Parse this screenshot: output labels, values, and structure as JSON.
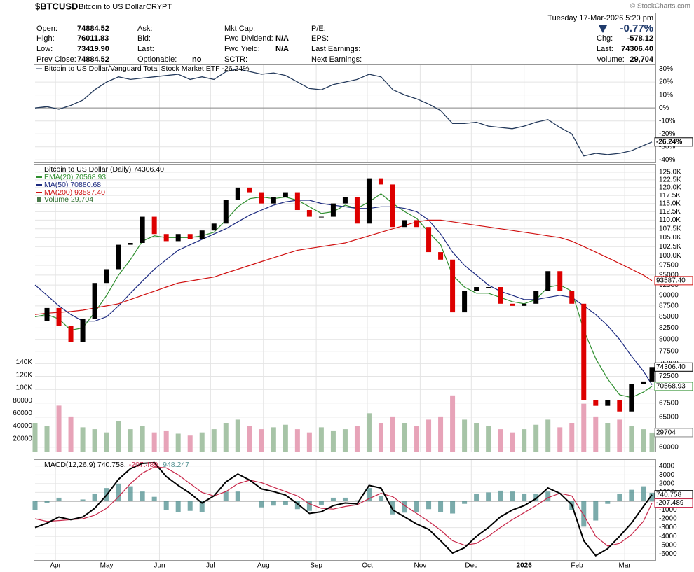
{
  "header": {
    "symbol": "$BTCUSD",
    "name": "Bitcoin to US Dollar",
    "exchange": "CRYPT",
    "brand": "© StockCharts.com",
    "datetime": "Tuesday 17-Mar-2026 5:20 pm",
    "change_pct": "-0.77%",
    "columns": [
      [
        {
          "label": "Open:",
          "value": "74884.52"
        },
        {
          "label": "High:",
          "value": "76011.83"
        },
        {
          "label": "Low:",
          "value": "73419.90"
        },
        {
          "label": "Prev Close:",
          "value": "74884.52"
        }
      ],
      [
        {
          "label": "Ask:"
        },
        {
          "label": "Bid:"
        },
        {
          "label": "Last:"
        },
        {
          "label": "Optionable:",
          "value": "no"
        }
      ],
      [
        {
          "label": "Mkt Cap:"
        },
        {
          "label": "Fwd Dividend:",
          "value": "N/A"
        },
        {
          "label": "Fwd Yield:",
          "value": "N/A"
        },
        {
          "label": "SCTR:"
        }
      ],
      [
        {
          "label": "P/E:"
        },
        {
          "label": "EPS:"
        },
        {
          "label": "Last Earnings:"
        },
        {
          "label": "Next Earnings:"
        }
      ]
    ],
    "right": [
      {
        "label": "Chg:",
        "value": "-578.12"
      },
      {
        "label": "Last:",
        "value": "74306.40"
      },
      {
        "label": "Volume:",
        "value": "29,704"
      }
    ]
  },
  "x_axis": {
    "xlim": [
      0,
      362
    ],
    "xticks": [
      {
        "value": 12,
        "label": "Apr"
      },
      {
        "value": 42,
        "label": "May"
      },
      {
        "value": 73,
        "label": "Jun"
      },
      {
        "value": 103,
        "label": "Jul"
      },
      {
        "value": 134,
        "label": "Aug"
      },
      {
        "value": 165,
        "label": "Sep"
      },
      {
        "value": 195,
        "label": "Oct"
      },
      {
        "value": 226,
        "label": "Nov"
      },
      {
        "value": 256,
        "label": "Dec"
      },
      {
        "value": 287,
        "label": "2026"
      },
      {
        "value": 318,
        "label": "Feb"
      },
      {
        "value": 346,
        "label": "Mar"
      }
    ],
    "x": [
      0,
      7,
      14,
      21,
      28,
      35,
      42,
      49,
      56,
      63,
      70,
      77,
      84,
      91,
      98,
      105,
      112,
      119,
      126,
      133,
      140,
      147,
      154,
      161,
      168,
      175,
      182,
      189,
      196,
      203,
      210,
      217,
      224,
      231,
      238,
      245,
      252,
      259,
      266,
      273,
      280,
      287,
      294,
      301,
      308,
      315,
      322,
      329,
      336,
      343,
      350,
      357,
      362
    ]
  },
  "chart_data": [
    {
      "type": "line",
      "legend": "Bitcoin to US Dollar/Vanguard Total Stock Market ETF -26.24%",
      "color": "#23395b",
      "grid": true,
      "ylim": [
        -42,
        33
      ],
      "yticks": [
        {
          "value": 30,
          "label": "30%"
        },
        {
          "value": 20,
          "label": "20%"
        },
        {
          "value": 10,
          "label": "10%"
        },
        {
          "value": 0,
          "label": "0%"
        },
        {
          "value": -10,
          "label": "-10%"
        },
        {
          "value": -20,
          "label": "-20%"
        },
        {
          "value": -30,
          "label": "-30%"
        },
        {
          "value": -40,
          "label": "-40%"
        }
      ],
      "values": [
        0,
        1,
        -1,
        2,
        6,
        14,
        20,
        24,
        22,
        23,
        24,
        25,
        26,
        22,
        24,
        22,
        28,
        30,
        28,
        26,
        27,
        25,
        20,
        15,
        14,
        18,
        20,
        22,
        26,
        24,
        14,
        10,
        7,
        3,
        -2,
        -12,
        -12,
        -11,
        -14,
        -15,
        -16,
        -14,
        -11,
        -9,
        -15,
        -20,
        -37,
        -35,
        -36,
        -35,
        -33,
        -29,
        -26.24
      ],
      "tags": [
        {
          "value": -26.24,
          "label": "-26.24%",
          "color": "#000000"
        }
      ]
    },
    {
      "type": "candlestick",
      "title": "Bitcoin to US Dollar (Daily) 74306.40",
      "log": true,
      "grid": true,
      "up_color": "#000000",
      "down_color": "#dd0000",
      "ylim": [
        59300,
        127600
      ],
      "yticks": [
        {
          "value": 125000,
          "label": "125.0K"
        },
        {
          "value": 122500,
          "label": "122.5K"
        },
        {
          "value": 120000,
          "label": "120.0K"
        },
        {
          "value": 117500,
          "label": "117.5K"
        },
        {
          "value": 115000,
          "label": "115.0K"
        },
        {
          "value": 112500,
          "label": "112.5K"
        },
        {
          "value": 110000,
          "label": "110.0K"
        },
        {
          "value": 107500,
          "label": "107.5K"
        },
        {
          "value": 105000,
          "label": "105.0K"
        },
        {
          "value": 102500,
          "label": "102.5K"
        },
        {
          "value": 100000,
          "label": "100.0K"
        },
        97500,
        95000,
        92500,
        90000,
        87500,
        85000,
        82500,
        80000,
        77500,
        75000,
        72500,
        70000,
        67500,
        65000,
        60000
      ],
      "close": [
        84000,
        87000,
        83000,
        79500,
        84500,
        93000,
        96500,
        103000,
        103500,
        111000,
        106000,
        104000,
        106000,
        104500,
        107000,
        109000,
        116000,
        120000,
        118500,
        115000,
        117000,
        118500,
        113000,
        111000,
        111000,
        115000,
        117000,
        109000,
        123000,
        121000,
        108000,
        110000,
        108000,
        101000,
        99000,
        86000,
        91000,
        92000,
        92000,
        88000,
        87500,
        88000,
        91000,
        96000,
        91000,
        88000,
        68000,
        67000,
        68000,
        66000,
        71000,
        71500,
        74306.4
      ],
      "series": [
        {
          "name": "EMA(20) 70568.93",
          "color": "#2f8f2f",
          "values": [
            85000,
            85500,
            84500,
            82000,
            82500,
            86000,
            90000,
            95000,
            99000,
            104000,
            105500,
            105000,
            105000,
            105000,
            105500,
            106500,
            110000,
            114000,
            116500,
            117000,
            116500,
            117000,
            116000,
            114000,
            112000,
            112500,
            114500,
            113500,
            115500,
            118000,
            115000,
            112500,
            110500,
            106500,
            103000,
            95000,
            92000,
            90500,
            90500,
            89500,
            88500,
            88000,
            89000,
            92000,
            92500,
            91000,
            82000,
            76000,
            72000,
            69000,
            68500,
            69500,
            70568.93
          ]
        },
        {
          "name": "MA(50) 70880.68",
          "color": "#1c2a80",
          "values": [
            92500,
            90000,
            87500,
            85500,
            84000,
            84000,
            85000,
            87500,
            90500,
            93500,
            96500,
            99000,
            101500,
            103000,
            104500,
            106000,
            107500,
            109500,
            111500,
            113000,
            114500,
            115500,
            116000,
            116000,
            115000,
            114500,
            114000,
            113500,
            113500,
            114000,
            114000,
            113500,
            112500,
            110000,
            106000,
            101000,
            97500,
            95000,
            92500,
            91000,
            90000,
            89000,
            89000,
            89500,
            90000,
            89500,
            87500,
            85500,
            83000,
            80000,
            76500,
            73500,
            70880.68
          ]
        },
        {
          "name": "MA(200) 93587.40",
          "color": "#d01010",
          "values": [
            85500,
            85800,
            86000,
            86200,
            86500,
            87000,
            87500,
            88000,
            89000,
            90000,
            91000,
            92000,
            93000,
            93500,
            94000,
            94500,
            95500,
            96500,
            97500,
            98500,
            99500,
            100500,
            101500,
            102000,
            102500,
            103000,
            103500,
            104500,
            105500,
            106500,
            107500,
            108500,
            109500,
            110000,
            110000,
            109500,
            109000,
            108500,
            108000,
            107500,
            107000,
            106500,
            106000,
            105500,
            105000,
            104000,
            102500,
            101000,
            99500,
            98000,
            96500,
            95000,
            93587.4
          ]
        }
      ],
      "tags": [
        {
          "value": 93587.4,
          "label": "93587.40",
          "color": "#d01010"
        },
        {
          "value": 74306.4,
          "label": "74306.40",
          "color": "#000000"
        },
        {
          "value": 70568.93,
          "label": "70568.93",
          "color": "#2f8f2f"
        }
      ],
      "volume": {
        "name": "Volume 29,704",
        "up_color": "#a7c4a7",
        "down_color": "#e7a3b8",
        "ylim": [
          0,
          450000
        ],
        "yticks": [
          20000,
          40000,
          60000,
          80000,
          {
            "value": 100000,
            "label": "100K"
          },
          {
            "value": 120000,
            "label": "120K"
          },
          {
            "value": 140000,
            "label": "140K"
          }
        ],
        "values": [
          45000,
          40000,
          72000,
          55000,
          38000,
          35000,
          30000,
          48000,
          35000,
          40000,
          30000,
          33000,
          28000,
          25000,
          30000,
          35000,
          45000,
          50000,
          40000,
          35000,
          38000,
          42000,
          35000,
          30000,
          38000,
          33000,
          35000,
          40000,
          60000,
          45000,
          55000,
          45000,
          40000,
          50000,
          55000,
          88000,
          50000,
          45000,
          40000,
          35000,
          30000,
          35000,
          42000,
          50000,
          38000,
          45000,
          75000,
          55000,
          45000,
          50000,
          40000,
          35000,
          29704
        ],
        "tags": [
          {
            "value": 29704,
            "label": "29704",
            "color": "#888888"
          }
        ]
      }
    },
    {
      "type": "macd",
      "grid": true,
      "title_parts": [
        {
          "text": "MACD(12,26,9) 740.758,",
          "color": "#000000"
        },
        {
          "text": "-207.489,",
          "color": "#c8284a"
        },
        {
          "text": "948.247",
          "color": "#4f8f8f"
        }
      ],
      "ylim": [
        -6700,
        4700
      ],
      "yticks": [
        4000,
        3000,
        2000,
        1000,
        -1000,
        -2000,
        -3000,
        -4000,
        -5000,
        -6000
      ],
      "series": [
        {
          "name": "MACD",
          "color": "#000000",
          "values": [
            -3000,
            -2500,
            -1800,
            -2100,
            -1800,
            -800,
            700,
            2500,
            3700,
            4300,
            4400,
            2800,
            1800,
            900,
            -200,
            600,
            2200,
            3100,
            2400,
            1400,
            1100,
            700,
            -300,
            -1400,
            -1200,
            -500,
            -200,
            -300,
            1800,
            1500,
            -1000,
            -1800,
            -2600,
            -3200,
            -4500,
            -5900,
            -5300,
            -4000,
            -3000,
            -1800,
            -1000,
            -500,
            300,
            1500,
            900,
            -400,
            -4500,
            -6200,
            -5400,
            -4000,
            -2500,
            -600,
            740.758
          ]
        },
        {
          "name": "Signal",
          "color": "#c8284a",
          "values": [
            -2000,
            -2300,
            -2200,
            -2100,
            -2000,
            -1600,
            -800,
            500,
            2000,
            3200,
            3900,
            3800,
            3000,
            2000,
            1000,
            600,
            1100,
            2000,
            2400,
            2100,
            1600,
            1100,
            600,
            -300,
            -800,
            -900,
            -600,
            -400,
            300,
            900,
            500,
            -500,
            -1400,
            -2300,
            -3300,
            -4500,
            -5000,
            -4800,
            -4000,
            -3000,
            -2100,
            -1300,
            -500,
            400,
            900,
            600,
            -1600,
            -4000,
            -5100,
            -4800,
            -3800,
            -2300,
            -207.489
          ]
        },
        {
          "name": "Histogram",
          "color": "#4f8f8f",
          "values": [
            -1000,
            -200,
            400,
            0,
            200,
            800,
            1500,
            2000,
            1700,
            1100,
            500,
            -1000,
            -1200,
            -1100,
            -1200,
            0,
            1100,
            1100,
            0,
            -700,
            -500,
            -400,
            -900,
            -1100,
            -400,
            400,
            400,
            100,
            1500,
            600,
            -1500,
            -1300,
            -1200,
            -900,
            -1200,
            -1400,
            -300,
            800,
            1000,
            1200,
            1100,
            800,
            800,
            1100,
            0,
            -1000,
            -2900,
            -2200,
            -300,
            800,
            1300,
            1700,
            948.247
          ]
        }
      ],
      "tags": [
        {
          "value": 740.758,
          "label": "740.758",
          "color": "#000000"
        },
        {
          "value": -207.489,
          "label": "-207.489",
          "color": "#c8284a"
        }
      ]
    }
  ]
}
